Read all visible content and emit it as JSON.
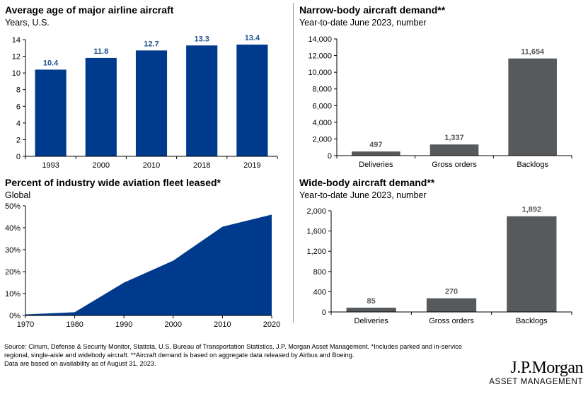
{
  "chart_data": [
    {
      "id": "avg-age",
      "type": "bar",
      "title": "Average age of major airline aircraft",
      "subtitle": "Years, U.S.",
      "categories": [
        "1993",
        "2000",
        "2010",
        "2018",
        "2019"
      ],
      "values": [
        10.4,
        11.8,
        12.7,
        13.3,
        13.4
      ],
      "data_labels": [
        "10.4",
        "11.8",
        "12.7",
        "13.3",
        "13.4"
      ],
      "yticks": [
        "0",
        "2",
        "4",
        "6",
        "8",
        "10",
        "12",
        "14"
      ],
      "ylim": [
        0,
        14
      ],
      "grid": false,
      "bar_color": "#003a8c",
      "label_color": "#1d4f91"
    },
    {
      "id": "narrow-body",
      "type": "bar",
      "title": "Narrow-body aircraft demand**",
      "subtitle": "Year-to-date June 2023, number",
      "categories": [
        "Deliveries",
        "Gross orders",
        "Backlogs"
      ],
      "values": [
        497,
        1337,
        11654
      ],
      "data_labels": [
        "497",
        "1,337",
        "11,654"
      ],
      "yticks": [
        "0",
        "2,000",
        "4,000",
        "6,000",
        "8,000",
        "10,000",
        "12,000",
        "14,000"
      ],
      "ylim": [
        0,
        14000
      ],
      "grid": false,
      "bar_color": "#575a5c",
      "label_color": "#575a5c"
    },
    {
      "id": "fleet-leased",
      "type": "area",
      "title": "Percent of industry wide aviation fleet leased*",
      "subtitle": "Global",
      "x": [
        1970,
        1980,
        1990,
        2000,
        2010,
        2020
      ],
      "xticks": [
        "1970",
        "1980",
        "1990",
        "2000",
        "2010",
        "2020"
      ],
      "values": [
        0.5,
        1.5,
        15,
        25,
        40.5,
        46
      ],
      "yticks": [
        "0%",
        "10%",
        "20%",
        "30%",
        "40%",
        "50%"
      ],
      "ylim": [
        0,
        50
      ],
      "xlim": [
        1970,
        2020
      ],
      "grid": false,
      "fill_color": "#003a8c"
    },
    {
      "id": "wide-body",
      "type": "bar",
      "title": "Wide-body aircraft demand**",
      "subtitle": "Year-to-date June 2023, number",
      "categories": [
        "Deliveries",
        "Gross orders",
        "Backlogs"
      ],
      "values": [
        85,
        270,
        1892
      ],
      "data_labels": [
        "85",
        "270",
        "1,892"
      ],
      "yticks": [
        "0",
        "400",
        "800",
        "1,200",
        "1,600",
        "2,000"
      ],
      "ylim": [
        0,
        2000
      ],
      "grid": false,
      "bar_color": "#575a5c",
      "label_color": "#575a5c"
    }
  ],
  "footnote": {
    "line1": "Source: Cirium, Defense & Security Monitor, Statista, U.S. Bureau of Transportation Statistics, J.P. Morgan Asset Management. *Includes parked and in-service",
    "line2": "regional, single-aisle and widebody aircraft. **Aircraft demand is based on aggregate data released by Airbus and Boeing.",
    "line3": "Data are based on availability as of August 31, 2023."
  },
  "logo": {
    "name": "J.P.Morgan",
    "tagline": "ASSET MANAGEMENT"
  }
}
